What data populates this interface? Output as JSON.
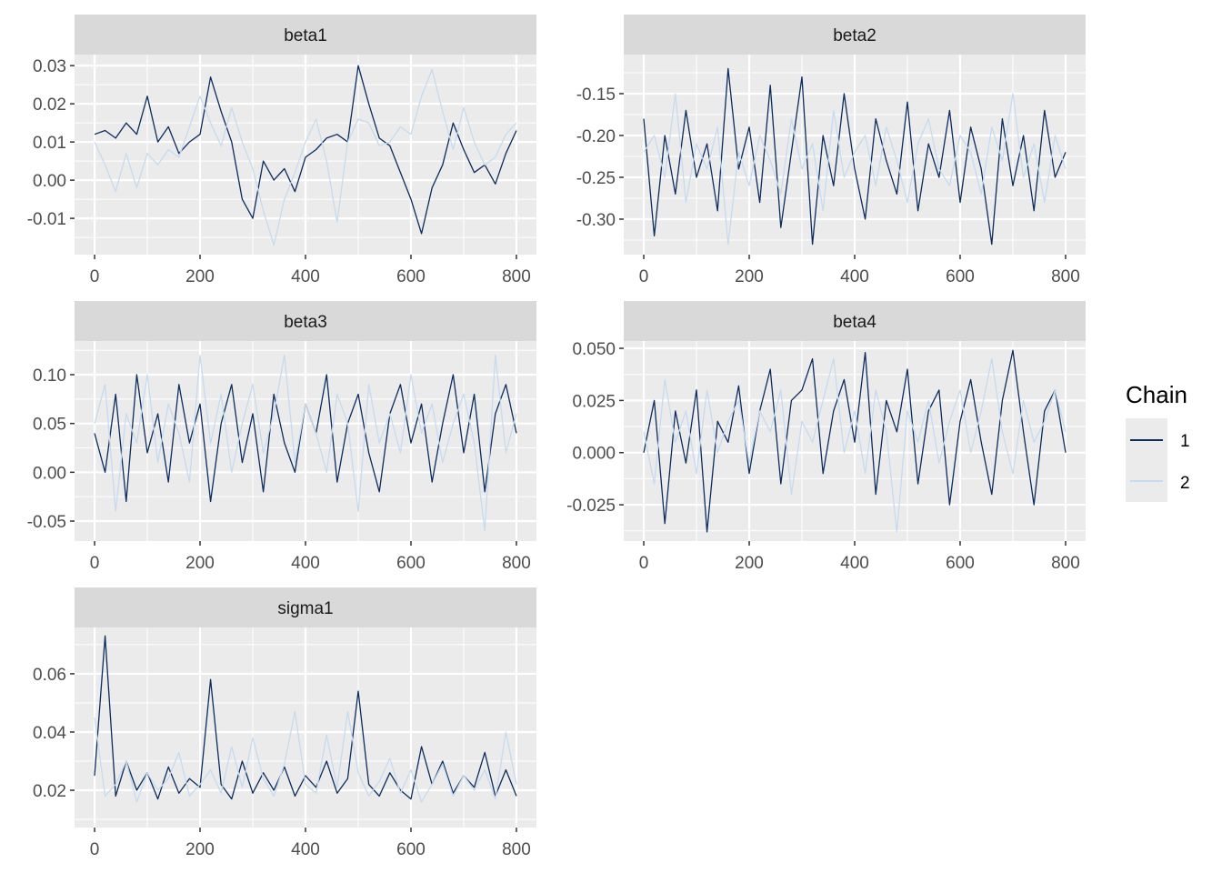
{
  "chart_data": {
    "type": "line",
    "title": "",
    "xlabel": "",
    "ylabel": "",
    "grid": true,
    "legend": {
      "title": "Chain",
      "placement": "right",
      "entries": [
        {
          "label": "1",
          "color": "#0b2c5e"
        },
        {
          "label": "2",
          "color": "#c6dbef"
        }
      ]
    },
    "x_step": 20,
    "xlim": [
      -38,
      838
    ],
    "x_ticks": [
      0,
      200,
      400,
      600,
      800
    ],
    "x_tick_labels": [
      "0",
      "200",
      "400",
      "600",
      "800"
    ],
    "panels": [
      {
        "name": "beta1",
        "ylim": [
          -0.0195,
          0.0329
        ],
        "y_ticks": [
          0.03,
          0.02,
          0.01,
          0.0,
          -0.01
        ],
        "y_tick_labels": [
          "0.03",
          "0.02",
          "0.01",
          "0.00",
          "-0.01"
        ],
        "series": [
          {
            "name": "1",
            "values": [
              0.012,
              0.013,
              0.011,
              0.015,
              0.012,
              0.022,
              0.01,
              0.014,
              0.007,
              0.01,
              0.012,
              0.027,
              0.018,
              0.01,
              -0.005,
              -0.01,
              0.005,
              0.0,
              0.003,
              -0.003,
              0.006,
              0.008,
              0.011,
              0.012,
              0.01,
              0.03,
              0.02,
              0.011,
              0.009,
              0.002,
              -0.005,
              -0.014,
              -0.002,
              0.004,
              0.015,
              0.008,
              0.002,
              0.004,
              -0.001,
              0.007,
              0.013
            ]
          },
          {
            "name": "2",
            "values": [
              0.01,
              0.004,
              -0.003,
              0.007,
              -0.002,
              0.007,
              0.004,
              0.008,
              0.006,
              0.014,
              0.022,
              0.015,
              0.009,
              0.019,
              0.01,
              0.003,
              -0.008,
              -0.017,
              -0.005,
              0.002,
              0.01,
              0.016,
              0.005,
              -0.011,
              0.01,
              0.016,
              0.015,
              0.009,
              0.01,
              0.014,
              0.012,
              0.022,
              0.029,
              0.018,
              0.008,
              0.019,
              0.01,
              0.004,
              0.006,
              0.012,
              0.015
            ]
          }
        ]
      },
      {
        "name": "beta2",
        "ylim": [
          -0.3424,
          -0.1033
        ],
        "y_ticks": [
          -0.15,
          -0.2,
          -0.25,
          -0.3
        ],
        "y_tick_labels": [
          "-0.15",
          "-0.20",
          "-0.25",
          "-0.30"
        ],
        "series": [
          {
            "name": "1",
            "values": [
              -0.18,
              -0.32,
              -0.2,
              -0.27,
              -0.17,
              -0.25,
              -0.21,
              -0.29,
              -0.12,
              -0.24,
              -0.19,
              -0.28,
              -0.14,
              -0.31,
              -0.22,
              -0.13,
              -0.33,
              -0.2,
              -0.26,
              -0.15,
              -0.24,
              -0.3,
              -0.18,
              -0.23,
              -0.27,
              -0.16,
              -0.29,
              -0.21,
              -0.25,
              -0.17,
              -0.28,
              -0.19,
              -0.24,
              -0.33,
              -0.18,
              -0.26,
              -0.2,
              -0.29,
              -0.17,
              -0.25,
              -0.22
            ]
          },
          {
            "name": "2",
            "values": [
              -0.22,
              -0.2,
              -0.25,
              -0.15,
              -0.28,
              -0.21,
              -0.24,
              -0.19,
              -0.33,
              -0.22,
              -0.26,
              -0.2,
              -0.23,
              -0.27,
              -0.18,
              -0.24,
              -0.21,
              -0.29,
              -0.17,
              -0.25,
              -0.22,
              -0.2,
              -0.26,
              -0.19,
              -0.23,
              -0.28,
              -0.21,
              -0.18,
              -0.24,
              -0.26,
              -0.2,
              -0.22,
              -0.27,
              -0.19,
              -0.23,
              -0.15,
              -0.25,
              -0.21,
              -0.28,
              -0.2,
              -0.24
            ]
          }
        ]
      },
      {
        "name": "beta3",
        "ylim": [
          -0.0705,
          0.1345
        ],
        "y_ticks": [
          0.1,
          0.05,
          0.0,
          -0.05
        ],
        "y_tick_labels": [
          "0.10",
          "0.05",
          "0.00",
          "-0.05"
        ],
        "series": [
          {
            "name": "1",
            "values": [
              0.04,
              0.0,
              0.08,
              -0.03,
              0.1,
              0.02,
              0.06,
              -0.01,
              0.09,
              0.03,
              0.07,
              -0.03,
              0.05,
              0.09,
              0.01,
              0.06,
              -0.02,
              0.08,
              0.03,
              0.0,
              0.07,
              0.04,
              0.1,
              -0.01,
              0.05,
              0.08,
              0.02,
              -0.02,
              0.06,
              0.09,
              0.03,
              0.07,
              -0.01,
              0.05,
              0.1,
              0.02,
              0.08,
              -0.02,
              0.06,
              0.09,
              0.04
            ]
          },
          {
            "name": "2",
            "values": [
              0.05,
              0.09,
              -0.04,
              0.06,
              0.03,
              0.1,
              0.01,
              0.07,
              0.04,
              -0.01,
              0.12,
              0.03,
              0.08,
              0.0,
              0.05,
              0.09,
              0.02,
              0.06,
              0.12,
              0.01,
              0.07,
              0.04,
              0.0,
              0.08,
              0.05,
              -0.04,
              0.09,
              0.03,
              0.06,
              0.02,
              0.1,
              0.04,
              0.07,
              0.01,
              0.05,
              0.08,
              0.03,
              -0.06,
              0.12,
              0.02,
              0.06
            ]
          }
        ]
      },
      {
        "name": "beta4",
        "ylim": [
          -0.0424,
          0.0535
        ],
        "y_ticks": [
          0.05,
          0.025,
          0.0,
          -0.025
        ],
        "y_tick_labels": [
          "0.050",
          "0.025",
          "0.000",
          "-0.025"
        ],
        "series": [
          {
            "name": "1",
            "values": [
              0.0,
              0.025,
              -0.034,
              0.02,
              -0.005,
              0.03,
              -0.038,
              0.015,
              0.005,
              0.032,
              -0.01,
              0.02,
              0.04,
              -0.015,
              0.025,
              0.03,
              0.045,
              -0.01,
              0.02,
              0.035,
              0.005,
              0.048,
              -0.02,
              0.025,
              0.01,
              0.04,
              -0.015,
              0.02,
              0.03,
              -0.025,
              0.015,
              0.035,
              0.005,
              -0.02,
              0.025,
              0.049,
              0.01,
              -0.025,
              0.02,
              0.03,
              0.0
            ]
          },
          {
            "name": "2",
            "values": [
              0.01,
              -0.015,
              0.035,
              0.005,
              0.02,
              -0.01,
              0.03,
              0.0,
              0.015,
              0.025,
              -0.005,
              0.02,
              0.01,
              0.03,
              -0.02,
              0.015,
              0.005,
              0.025,
              0.045,
              0.0,
              0.02,
              -0.01,
              0.03,
              0.01,
              -0.038,
              0.02,
              0.005,
              0.025,
              -0.005,
              0.015,
              0.03,
              0.0,
              0.02,
              0.045,
              0.01,
              -0.01,
              0.025,
              0.005,
              0.015,
              0.03,
              0.01
            ]
          }
        ]
      },
      {
        "name": "sigma1",
        "ylim": [
          0.0072,
          0.0759
        ],
        "y_ticks": [
          0.06,
          0.04,
          0.02
        ],
        "y_tick_labels": [
          "0.06",
          "0.04",
          "0.02"
        ],
        "series": [
          {
            "name": "1",
            "values": [
              0.025,
              0.073,
              0.018,
              0.03,
              0.02,
              0.026,
              0.017,
              0.028,
              0.019,
              0.024,
              0.021,
              0.058,
              0.022,
              0.017,
              0.03,
              0.019,
              0.026,
              0.02,
              0.028,
              0.018,
              0.025,
              0.021,
              0.03,
              0.019,
              0.024,
              0.054,
              0.022,
              0.018,
              0.026,
              0.02,
              0.017,
              0.035,
              0.022,
              0.03,
              0.019,
              0.025,
              0.021,
              0.033,
              0.018,
              0.027,
              0.018
            ]
          },
          {
            "name": "2",
            "values": [
              0.045,
              0.018,
              0.022,
              0.03,
              0.016,
              0.026,
              0.02,
              0.024,
              0.033,
              0.018,
              0.022,
              0.027,
              0.019,
              0.035,
              0.021,
              0.038,
              0.024,
              0.018,
              0.029,
              0.047,
              0.022,
              0.019,
              0.039,
              0.021,
              0.047,
              0.026,
              0.018,
              0.023,
              0.031,
              0.019,
              0.027,
              0.016,
              0.022,
              0.029,
              0.018,
              0.025,
              0.02,
              0.027,
              0.017,
              0.04,
              0.022
            ]
          }
        ]
      }
    ]
  }
}
